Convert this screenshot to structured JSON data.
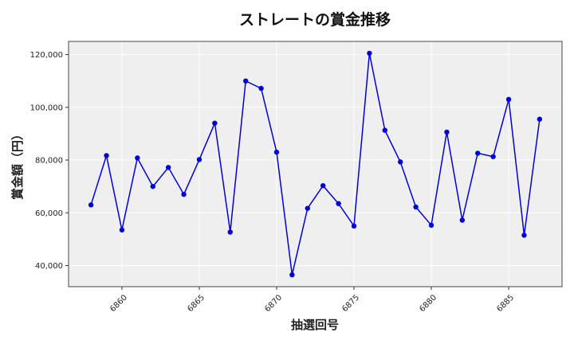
{
  "chart_data": {
    "type": "line",
    "title": "ストレートの賞金推移",
    "xlabel": "抽選回号",
    "ylabel": "賞金額（円）",
    "xlim": [
      6856.55,
      6888.45
    ],
    "ylim": [
      32000,
      125000
    ],
    "x_ticks": [
      6860,
      6865,
      6870,
      6875,
      6880,
      6885
    ],
    "y_ticks": [
      40000,
      60000,
      80000,
      100000,
      120000
    ],
    "grid": true,
    "series": [
      {
        "color": "#0000dd",
        "x": [
          6858,
          6859,
          6860,
          6861,
          6862,
          6863,
          6864,
          6865,
          6866,
          6867,
          6868,
          6869,
          6870,
          6871,
          6872,
          6873,
          6874,
          6875,
          6876,
          6877,
          6878,
          6879,
          6880,
          6881,
          6882,
          6883,
          6884,
          6885,
          6886,
          6887
        ],
        "y": [
          63000,
          81700,
          53500,
          80800,
          70000,
          77200,
          67000,
          80200,
          94000,
          52700,
          110000,
          107200,
          83000,
          36500,
          61700,
          70300,
          63500,
          55000,
          120500,
          91300,
          79300,
          62200,
          55300,
          90600,
          57200,
          82600,
          81300,
          103000,
          51500,
          95500
        ]
      }
    ]
  }
}
